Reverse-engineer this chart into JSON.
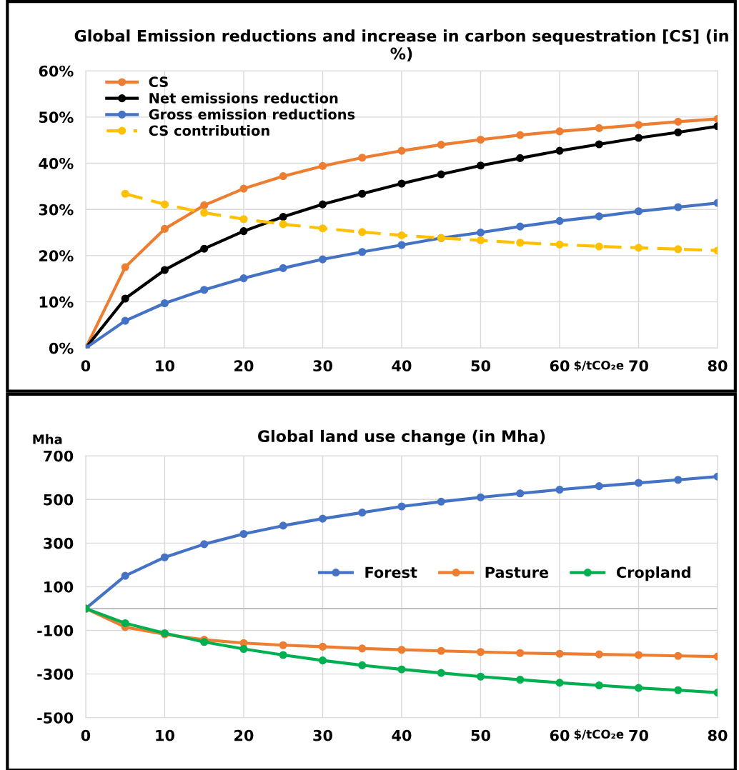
{
  "chart_data": [
    {
      "type": "line",
      "title": "Global Emission reductions and increase in carbon sequestration [CS] (in %)",
      "xlabel": "$/tCO₂e",
      "x": [
        0,
        5,
        10,
        15,
        20,
        25,
        30,
        35,
        40,
        45,
        50,
        55,
        60,
        65,
        70,
        75,
        80
      ],
      "series": [
        {
          "name": "CS",
          "color": "#ed7d31",
          "values": [
            0,
            17.5,
            25.8,
            30.9,
            34.5,
            37.2,
            39.4,
            41.2,
            42.7,
            44.0,
            45.1,
            46.1,
            46.9,
            47.6,
            48.3,
            49.0,
            49.6
          ]
        },
        {
          "name": "Net emissions reduction",
          "color": "#000000",
          "values": [
            0,
            10.7,
            16.9,
            21.5,
            25.3,
            28.4,
            31.1,
            33.4,
            35.6,
            37.6,
            39.5,
            41.1,
            42.7,
            44.1,
            45.5,
            46.7,
            48.0
          ]
        },
        {
          "name": "Gross emission reductions",
          "color": "#4472c4",
          "values": [
            0,
            5.9,
            9.7,
            12.6,
            15.1,
            17.3,
            19.2,
            20.8,
            22.3,
            23.8,
            25.0,
            26.3,
            27.5,
            28.5,
            29.6,
            30.5,
            31.4
          ]
        },
        {
          "name": "CS contribution",
          "color": "#ffc000",
          "line_style": "dashed",
          "values": [
            null,
            33.4,
            31.1,
            29.3,
            27.9,
            26.8,
            25.9,
            25.1,
            24.4,
            23.8,
            23.3,
            22.8,
            22.4,
            22.0,
            21.7,
            21.4,
            21.1
          ]
        }
      ],
      "xlim": [
        0,
        80
      ],
      "xticks": [
        0,
        10,
        20,
        30,
        40,
        50,
        60,
        70,
        80
      ],
      "ylim": [
        0,
        60
      ],
      "yticks": [
        {
          "value": 0,
          "label": "0%"
        },
        {
          "value": 10,
          "label": "10%"
        },
        {
          "value": 20,
          "label": "20%"
        },
        {
          "value": 30,
          "label": "30%"
        },
        {
          "value": 40,
          "label": "40%"
        },
        {
          "value": 50,
          "label": "50%"
        },
        {
          "value": 60,
          "label": "60%"
        }
      ],
      "grid": true,
      "legend": "top left",
      "marker": "circle",
      "line_style": "solid"
    },
    {
      "type": "line",
      "title": "Global land use change (in Mha)",
      "xlabel": "$/tCO₂e",
      "ylabel": "Mha",
      "x": [
        0,
        5,
        10,
        15,
        20,
        25,
        30,
        35,
        40,
        45,
        50,
        55,
        60,
        65,
        70,
        75,
        80
      ],
      "series": [
        {
          "name": "Forest",
          "color": "#4472c4",
          "values": [
            0,
            150,
            235,
            295,
            342,
            380,
            412,
            440,
            468,
            490,
            510,
            528,
            545,
            561,
            576,
            590,
            605
          ]
        },
        {
          "name": "Pasture",
          "color": "#ed7d31",
          "values": [
            0,
            -85,
            -118,
            -143,
            -158,
            -168,
            -175,
            -183,
            -189,
            -194,
            -199,
            -204,
            -207,
            -210,
            -213,
            -217,
            -220
          ]
        },
        {
          "name": "Cropland",
          "color": "#00b050",
          "values": [
            0,
            -67,
            -113,
            -153,
            -185,
            -213,
            -238,
            -260,
            -279,
            -295,
            -312,
            -326,
            -340,
            -352,
            -364,
            -374,
            -385
          ]
        }
      ],
      "xlim": [
        0,
        80
      ],
      "xticks": [
        0,
        10,
        20,
        30,
        40,
        50,
        60,
        70,
        80
      ],
      "ylim": [
        -500,
        700
      ],
      "yticks": [
        {
          "value": -500,
          "label": "-500"
        },
        {
          "value": -300,
          "label": "-300"
        },
        {
          "value": -100,
          "label": "-100"
        },
        100,
        300,
        500,
        700
      ],
      "ref_lines": [
        {
          "axis": "y",
          "value": 0,
          "color": "#bfbfbf"
        }
      ],
      "grid": true,
      "legend": "right",
      "marker": "circle",
      "line_style": "solid"
    }
  ]
}
